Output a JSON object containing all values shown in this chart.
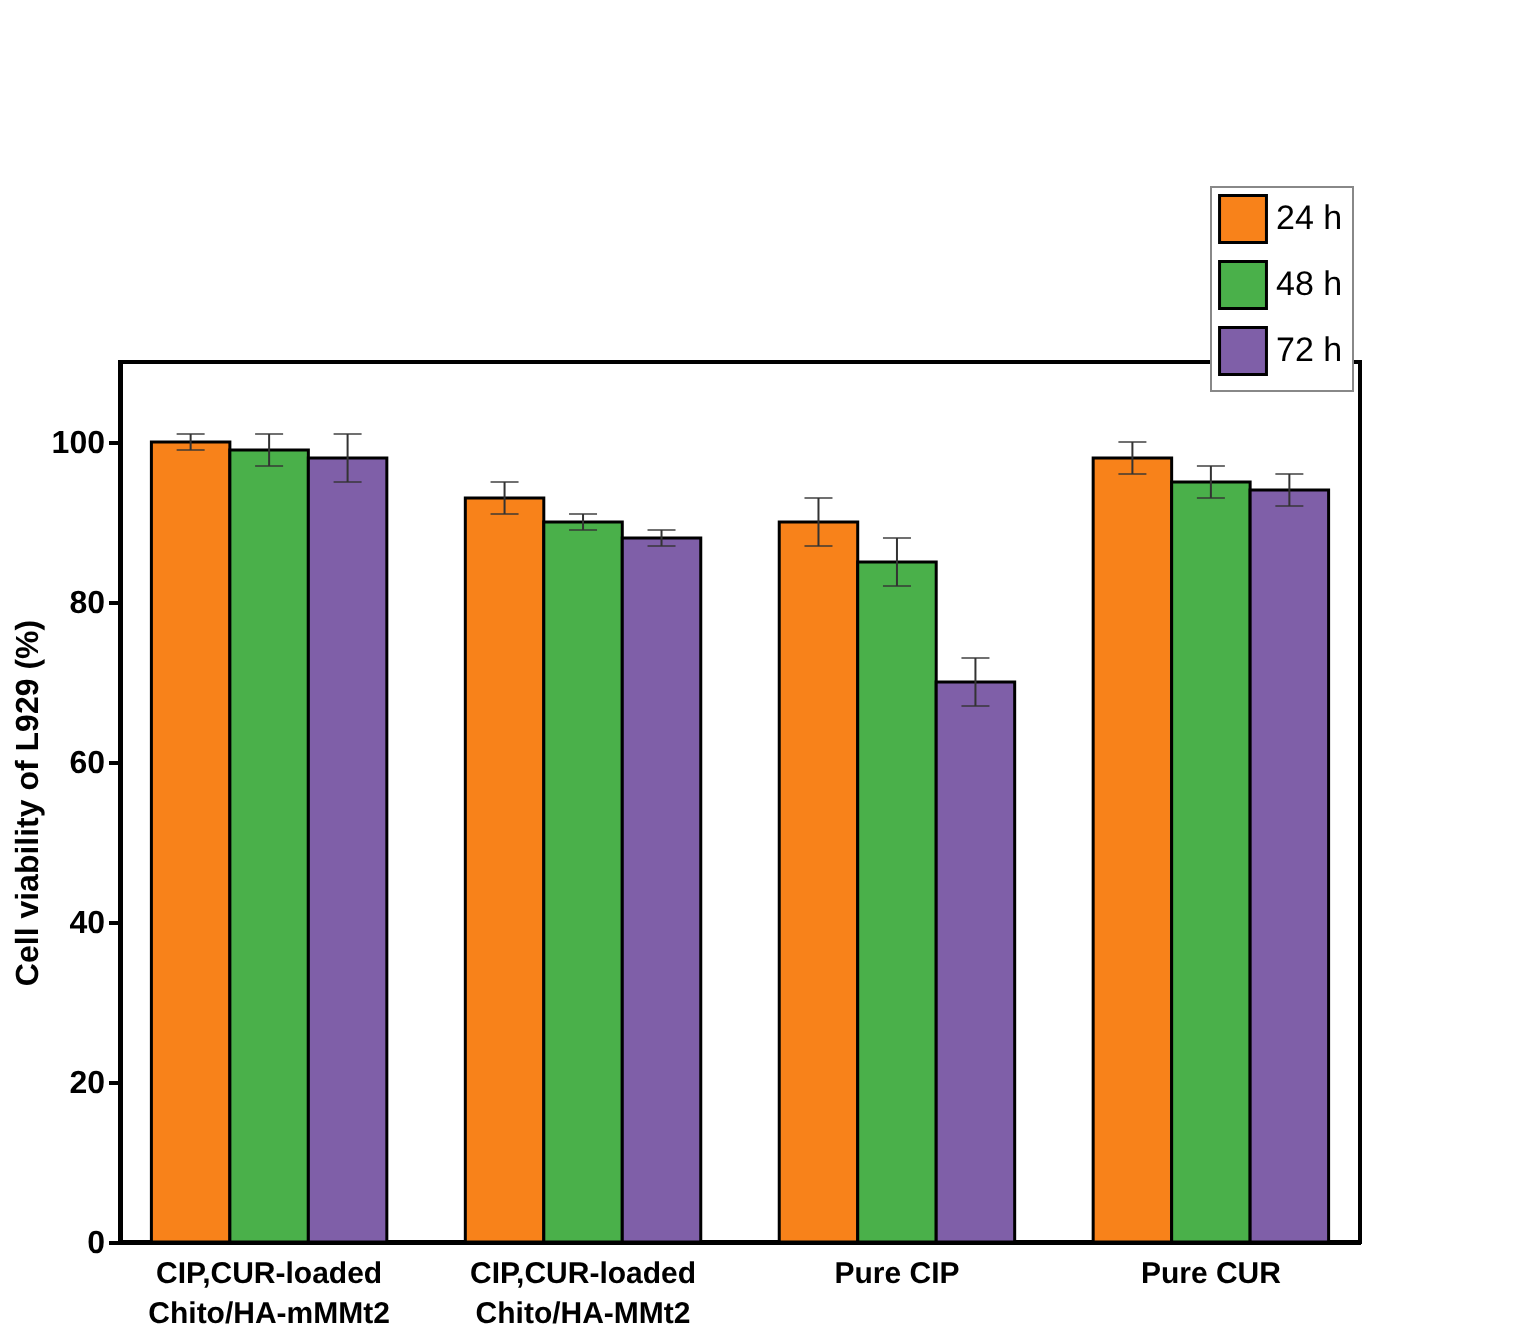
{
  "chart_data": {
    "type": "bar",
    "ylabel": "Cell viability of  L929 (%)",
    "categories": [
      "CIP,CUR-loaded\nChito/HA-mMMt2",
      "CIP,CUR-loaded\nChito/HA-MMt2",
      "Pure CIP",
      "Pure CUR"
    ],
    "series": [
      {
        "name": "24 h",
        "color": "#f8821a",
        "values": [
          100,
          93,
          90,
          98
        ],
        "errors": [
          1,
          2,
          3,
          2
        ]
      },
      {
        "name": "48 h",
        "color": "#4ab04a",
        "values": [
          99,
          90,
          85,
          95
        ],
        "errors": [
          2,
          1,
          3,
          2
        ]
      },
      {
        "name": "72 h",
        "color": "#7f5fa8",
        "values": [
          98,
          88,
          70,
          94
        ],
        "errors": [
          3,
          1,
          3,
          2
        ]
      }
    ],
    "ylim": [
      0,
      110
    ],
    "yticks": [
      0,
      20,
      40,
      60,
      80,
      100
    ],
    "grid": false,
    "legend": "top right"
  }
}
